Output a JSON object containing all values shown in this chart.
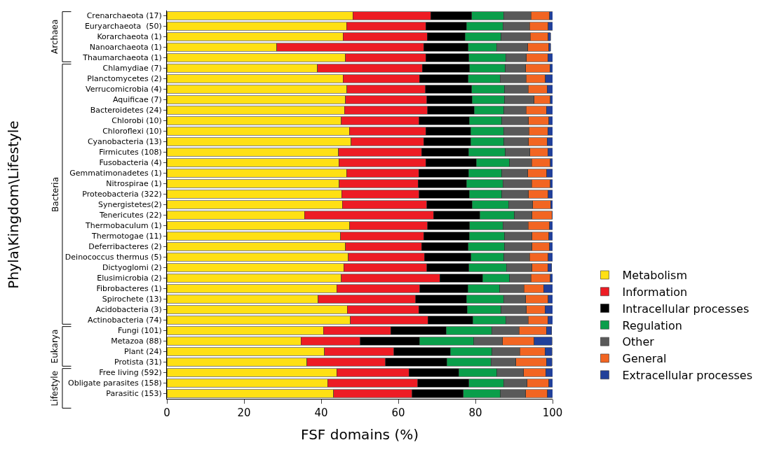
{
  "chart_data": {
    "type": "bar",
    "orientation": "horizontal",
    "stacked": true,
    "xlabel": "FSF domains (%)",
    "ylabel": "Phyla\\Kingdom\\Lifestyle",
    "categories": [
      "Crenarchaeota (17)",
      "Euryarchaeota  (50)",
      "Korarchaeota (1)",
      "Nanoarchaeota (1)",
      "Thaumarchaeota (1)",
      "Chlamydiae (7)",
      "Planctomycetes (2)",
      "Verrucomicrobia (4)",
      "Aquificae (7)",
      "Bacteroidetes (24)",
      "Chlorobi (10)",
      "Chloroflexi (10)",
      "Cyanobacteria (13)",
      "Firmicutes (108)",
      "Fusobacteria (4)",
      "Gemmatimonadetes (1)",
      "Nitrospirae (1)",
      "Proteobacteria (322)",
      "Synergistetes(2)",
      "Tenericutes (22)",
      "Thermobaculum (1)",
      "Thermotogae (11)",
      "Deferribacteres (2)",
      "Deinococcus thermus (5)",
      "Dictyoglomi (2)",
      "Elusimicrobia (2)",
      "Fibrobacteres (1)",
      "Spirochete (13)",
      "Acidobacteria (3)",
      "Actinobacteria (74)",
      "Fungi (101)",
      "Metazoa (88)",
      "Plant (24)",
      "Protista (31)",
      "Free living (592)",
      "Obligate parasites (158)",
      "Parasitic (153)"
    ],
    "series": [
      {
        "name": "Metabolism",
        "color": "#ffe014",
        "values": [
          48.2,
          46.6,
          45.7,
          28.5,
          46.3,
          39.0,
          45.7,
          46.7,
          46.3,
          46.0,
          45.2,
          47.3,
          47.8,
          44.5,
          44.6,
          46.6,
          44.7,
          45.3,
          45.5,
          35.7,
          47.4,
          45.0,
          46.3,
          47.0,
          45.9,
          45.2,
          44.0,
          39.2,
          46.8,
          47.6,
          40.6,
          34.8,
          40.9,
          36.3,
          44.0,
          41.7,
          43.2
        ]
      },
      {
        "name": "Information",
        "color": "#ed1c24",
        "values": [
          20.2,
          20.5,
          21.8,
          38.1,
          20.8,
          27.2,
          19.8,
          20.3,
          21.1,
          21.6,
          20.2,
          19.8,
          18.8,
          21.5,
          22.5,
          18.7,
          20.4,
          20.1,
          21.9,
          33.4,
          20.2,
          21.6,
          19.7,
          19.8,
          21.5,
          25.6,
          21.6,
          25.3,
          18.5,
          20.1,
          17.4,
          15.3,
          18.0,
          20.4,
          18.8,
          23.3,
          20.4
        ]
      },
      {
        "name": "Intracellular processes",
        "color": "#000000",
        "values": [
          10.6,
          10.6,
          9.8,
          11.5,
          11.2,
          12.3,
          12.6,
          12.0,
          11.7,
          12.1,
          13.0,
          11.7,
          12.2,
          12.2,
          13.1,
          12.9,
          12.6,
          13.0,
          11.7,
          12.0,
          10.9,
          11.8,
          12.1,
          12.1,
          10.9,
          11.1,
          12.4,
          13.2,
          12.6,
          11.6,
          14.4,
          15.4,
          14.6,
          15.9,
          12.9,
          13.3,
          13.3
        ]
      },
      {
        "name": "Regulation",
        "color": "#0a9e4a",
        "values": [
          8.3,
          9.4,
          9.4,
          7.4,
          9.6,
          9.3,
          8.3,
          8.6,
          8.5,
          7.7,
          8.5,
          8.5,
          8.6,
          9.6,
          8.7,
          8.7,
          9.4,
          8.5,
          9.5,
          9.0,
          8.6,
          9.2,
          9.5,
          8.5,
          9.7,
          7.0,
          8.3,
          9.6,
          8.8,
          8.6,
          11.8,
          14.1,
          10.8,
          11.4,
          9.9,
          9.0,
          9.6
        ]
      },
      {
        "name": "Other",
        "color": "#595959",
        "values": [
          7.1,
          6.9,
          7.5,
          8.1,
          5.3,
          5.2,
          6.7,
          6.1,
          7.6,
          5.7,
          6.9,
          6.6,
          6.4,
          6.3,
          5.7,
          6.7,
          7.5,
          6.9,
          6.3,
          4.6,
          6.6,
          7.1,
          7.1,
          6.6,
          6.7,
          5.5,
          6.3,
          5.7,
          6.5,
          5.8,
          7.1,
          7.4,
          7.2,
          6.5,
          6.9,
          6.1,
          6.5
        ]
      },
      {
        "name": "General",
        "color": "#f26522",
        "values": [
          4.8,
          4.9,
          4.7,
          5.4,
          5.6,
          6.3,
          5.0,
          4.9,
          4.2,
          5.3,
          5.2,
          4.9,
          4.8,
          4.7,
          4.8,
          4.9,
          4.8,
          5.1,
          4.6,
          5.2,
          5.5,
          4.3,
          4.5,
          4.9,
          4.1,
          5.0,
          5.1,
          5.9,
          4.8,
          5.1,
          7.1,
          8.2,
          6.5,
          7.9,
          5.7,
          5.6,
          5.7
        ]
      },
      {
        "name": "Extracellular processes",
        "color": "#21409a",
        "values": [
          0.8,
          1.1,
          0.6,
          0.5,
          1.2,
          0.7,
          1.9,
          1.4,
          0.6,
          1.6,
          1.0,
          1.2,
          1.4,
          1.2,
          0.6,
          1.5,
          0.6,
          1.1,
          0.5,
          0.1,
          0.8,
          1.0,
          0.8,
          1.1,
          1.0,
          0.6,
          2.3,
          1.1,
          2.0,
          1.2,
          1.4,
          4.7,
          1.9,
          1.5,
          1.8,
          1.0,
          1.3
        ]
      }
    ],
    "xlim": [
      0,
      100
    ],
    "xticks": [
      0,
      20,
      40,
      60,
      80,
      100
    ],
    "annotations": [
      "Archaea",
      "Bacteria",
      "Eukarya",
      "Lifestyle"
    ],
    "legend": "right",
    "grid": false
  }
}
